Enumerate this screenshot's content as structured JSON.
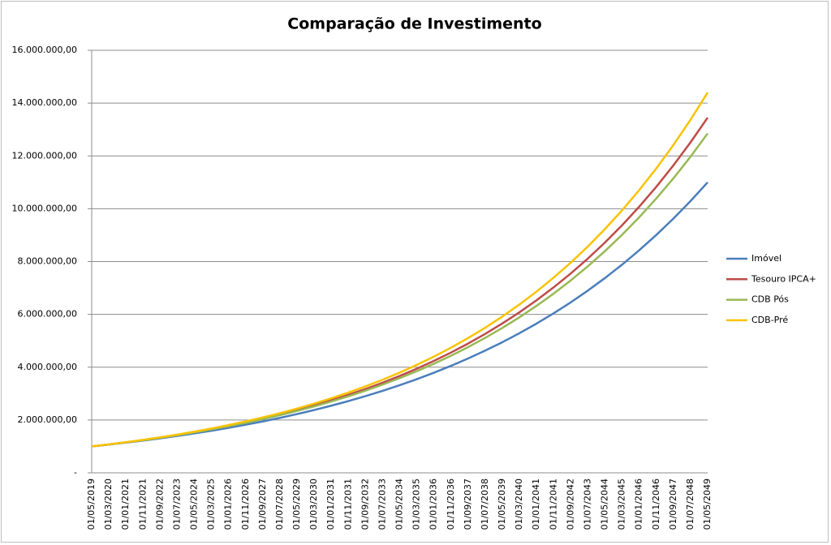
{
  "chart_data": {
    "type": "line",
    "title": "Comparação de Investimento",
    "categories": [
      "01/05/2019",
      "01/03/2020",
      "01/01/2021",
      "01/11/2021",
      "01/09/2022",
      "01/07/2023",
      "01/05/2024",
      "01/03/2025",
      "01/01/2026",
      "01/11/2026",
      "01/09/2027",
      "01/07/2028",
      "01/05/2029",
      "01/03/2030",
      "01/01/2031",
      "01/11/2031",
      "01/09/2032",
      "01/07/2033",
      "01/05/2034",
      "01/03/2035",
      "01/01/2036",
      "01/11/2036",
      "01/09/2037",
      "01/07/2038",
      "01/05/2039",
      "01/03/2040",
      "01/01/2041",
      "01/11/2041",
      "01/09/2042",
      "01/07/2043",
      "01/05/2044",
      "01/03/2045",
      "01/01/2046",
      "01/11/2046",
      "01/09/2047",
      "01/07/2048",
      "01/05/2049"
    ],
    "series": [
      {
        "name": "Imóvel",
        "color": "#4a7ebb",
        "values": [
          1000000,
          1068900,
          1142500,
          1221200,
          1305300,
          1395300,
          1491300,
          1594100,
          1703800,
          1821200,
          1946700,
          2080800,
          2224100,
          2377300,
          2541100,
          2716200,
          2903200,
          3103200,
          3317000,
          3545000,
          3790000,
          4051000,
          4330000,
          4628000,
          4946000,
          5287000,
          5651000,
          6040000,
          6456000,
          6901000,
          7376000,
          7884000,
          8427000,
          9008000,
          9628000,
          10291000,
          11000000
        ]
      },
      {
        "name": "Tesouro IPCA+",
        "color": "#be4b48",
        "values": [
          1000000,
          1074900,
          1155300,
          1241800,
          1334700,
          1434700,
          1542100,
          1657600,
          1781700,
          1915100,
          2058500,
          2212500,
          2378200,
          2556300,
          2747600,
          2953300,
          3174400,
          3412100,
          3667600,
          3942100,
          4237300,
          4554500,
          4895500,
          5262000,
          5656000,
          6079400,
          6534500,
          7023700,
          7549600,
          8114800,
          8722300,
          9375300,
          10077200,
          10831600,
          11642500,
          12514100,
          13450000
        ]
      },
      {
        "name": "CDB Pós",
        "color": "#98b954",
        "values": [
          1000000,
          1073500,
          1152400,
          1237200,
          1328200,
          1425600,
          1530400,
          1643000,
          1763800,
          1893500,
          2032700,
          2182100,
          2342500,
          2514700,
          2699600,
          2898000,
          3111100,
          3339800,
          3585200,
          3848700,
          4131600,
          4435100,
          4761200,
          5111100,
          5486900,
          5890200,
          6323100,
          6787900,
          7286800,
          7822400,
          8397500,
          9014700,
          9677200,
          10388500,
          11152100,
          11971900,
          12850000
        ]
      },
      {
        "name": "CDB-Pré",
        "color": "#f9c300",
        "values": [
          1000000,
          1076900,
          1159600,
          1248900,
          1344900,
          1448300,
          1559800,
          1679700,
          1808900,
          1948000,
          2097900,
          2259200,
          2432900,
          2620000,
          2821500,
          3038400,
          3272100,
          3523700,
          3794700,
          4086500,
          4400700,
          4739100,
          5103600,
          5496000,
          5918700,
          6373800,
          6864000,
          7391800,
          7960200,
          8572300,
          9231400,
          9941300,
          10705800,
          11529000,
          12415500,
          13370200,
          14400000
        ]
      }
    ],
    "ylim": [
      0,
      16000000
    ],
    "yticks": [
      {
        "value": 0,
        "label": "-"
      },
      {
        "value": 2000000,
        "label": "2.000.000,00"
      },
      {
        "value": 4000000,
        "label": "4.000.000,00"
      },
      {
        "value": 6000000,
        "label": "6.000.000,00"
      },
      {
        "value": 8000000,
        "label": "8.000.000,00"
      },
      {
        "value": 10000000,
        "label": "10.000.000,00"
      },
      {
        "value": 12000000,
        "label": "12.000.000,00"
      },
      {
        "value": 14000000,
        "label": "14.000.000,00"
      },
      {
        "value": 16000000,
        "label": "16.000.000,00"
      }
    ],
    "grid": true,
    "legend": "right"
  }
}
